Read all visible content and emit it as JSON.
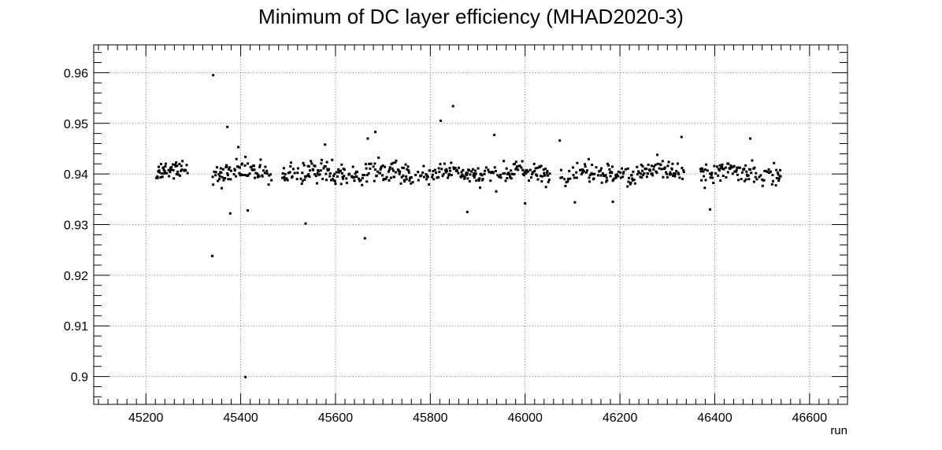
{
  "chart_data": {
    "type": "scatter",
    "title": "Minimum of DC layer efficiency (MHAD2020-3)",
    "xlabel": "run",
    "ylabel": "",
    "xlim": [
      45090,
      46680
    ],
    "ylim": [
      0.8945,
      0.9655
    ],
    "xticks": [
      45200,
      45400,
      45600,
      45800,
      46000,
      46200,
      46400,
      46600
    ],
    "xtick_labels": [
      "45200",
      "45400",
      "45600",
      "45800",
      "46000",
      "46200",
      "46400",
      "46600"
    ],
    "yticks": [
      0.9,
      0.91,
      0.92,
      0.93,
      0.94,
      0.95,
      0.96
    ],
    "ytick_labels": [
      "0.9",
      "0.91",
      "0.92",
      "0.93",
      "0.94",
      "0.95",
      "0.96"
    ],
    "grid": true,
    "legend": "none",
    "marker_color": "#000000",
    "run_ranges": [
      [
        45222,
        45290
      ],
      [
        45340,
        45466
      ],
      [
        45488,
        45775
      ],
      [
        45778,
        46052
      ],
      [
        46068,
        46335
      ],
      [
        46370,
        46540
      ]
    ],
    "baseline_efficiency": 0.9402,
    "typical_spread": 0.0019,
    "outliers": [
      {
        "x": 45342,
        "y": 0.9595
      },
      {
        "x": 45340,
        "y": 0.9238
      },
      {
        "x": 45410,
        "y": 0.8999
      },
      {
        "x": 45537,
        "y": 0.9302
      },
      {
        "x": 45662,
        "y": 0.9273
      },
      {
        "x": 45848,
        "y": 0.9534
      },
      {
        "x": 45822,
        "y": 0.9505
      },
      {
        "x": 45372,
        "y": 0.9493
      },
      {
        "x": 45415,
        "y": 0.9328
      },
      {
        "x": 45378,
        "y": 0.9322
      },
      {
        "x": 45684,
        "y": 0.9483
      },
      {
        "x": 45578,
        "y": 0.9458
      },
      {
        "x": 45878,
        "y": 0.9325
      },
      {
        "x": 46390,
        "y": 0.933
      },
      {
        "x": 46073,
        "y": 0.9466
      },
      {
        "x": 46475,
        "y": 0.947
      },
      {
        "x": 46330,
        "y": 0.9473
      },
      {
        "x": 45935,
        "y": 0.9477
      },
      {
        "x": 46000,
        "y": 0.9342
      },
      {
        "x": 46105,
        "y": 0.9344
      },
      {
        "x": 45395,
        "y": 0.9453
      },
      {
        "x": 45668,
        "y": 0.947
      },
      {
        "x": 46185,
        "y": 0.9345
      }
    ]
  }
}
